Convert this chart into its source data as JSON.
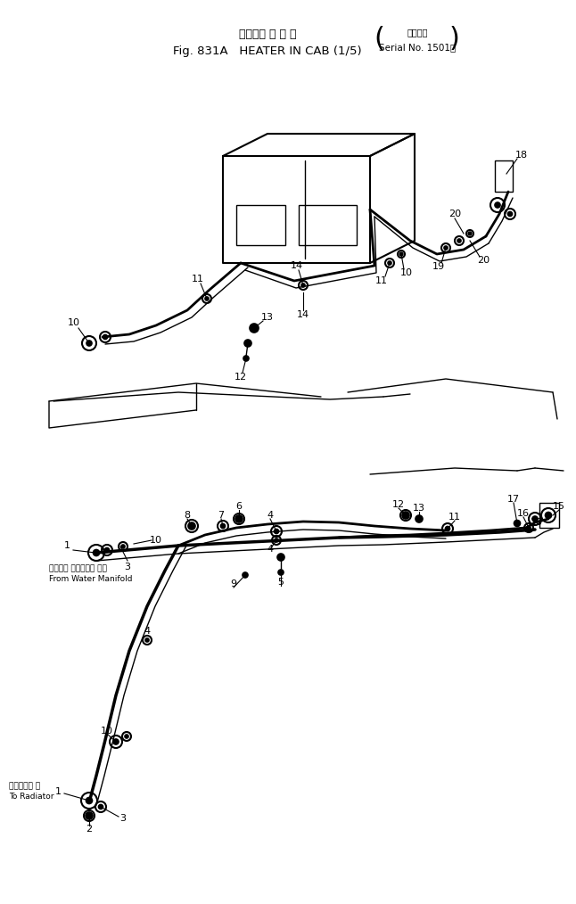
{
  "title_line1": "キャブ用 ヒ ー タ",
  "title_line2": "Fig. 831A   HEATER IN CAB (1/5)",
  "title_serial_line1": "適用号機",
  "title_serial_line2": "Serial No. 1501～",
  "bg_color": "#ffffff",
  "line_color": "#000000",
  "figsize": [
    6.46,
    10.14
  ],
  "dpi": 100,
  "xlim": [
    0,
    646
  ],
  "ylim": [
    0,
    1014
  ]
}
